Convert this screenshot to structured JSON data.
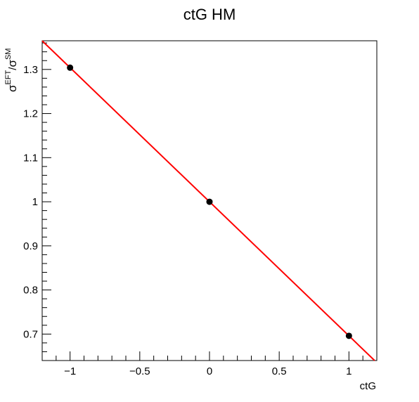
{
  "chart_data": {
    "type": "scatter",
    "title": "ctG HM",
    "xlabel": "ctG",
    "ylabel": {
      "symbol": "σ",
      "numerator_sup": "EFT",
      "separator": "/",
      "denominator_sup": "SM"
    },
    "xlim": [
      -1.2,
      1.2
    ],
    "ylim": [
      0.64,
      1.365
    ],
    "x_ticks": [
      -1,
      -0.5,
      0,
      0.5,
      1
    ],
    "x_tick_labels": [
      "−1",
      "−0.5",
      "0",
      "0.5",
      "1"
    ],
    "y_ticks": [
      0.7,
      0.8,
      0.9,
      1.0,
      1.1,
      1.2,
      1.3
    ],
    "y_tick_labels": [
      "0.7",
      "0.8",
      "0.9",
      "1",
      "1.1",
      "1.2",
      "1.3"
    ],
    "grid": false,
    "series": [
      {
        "kind": "points",
        "x": [
          -1,
          0,
          1
        ],
        "y": [
          1.304,
          1.0,
          0.696
        ],
        "color": "#000000"
      },
      {
        "kind": "fit-line",
        "function": "linear",
        "intercept": 1.0,
        "slope": -0.304,
        "color": "#ff0000"
      }
    ]
  }
}
